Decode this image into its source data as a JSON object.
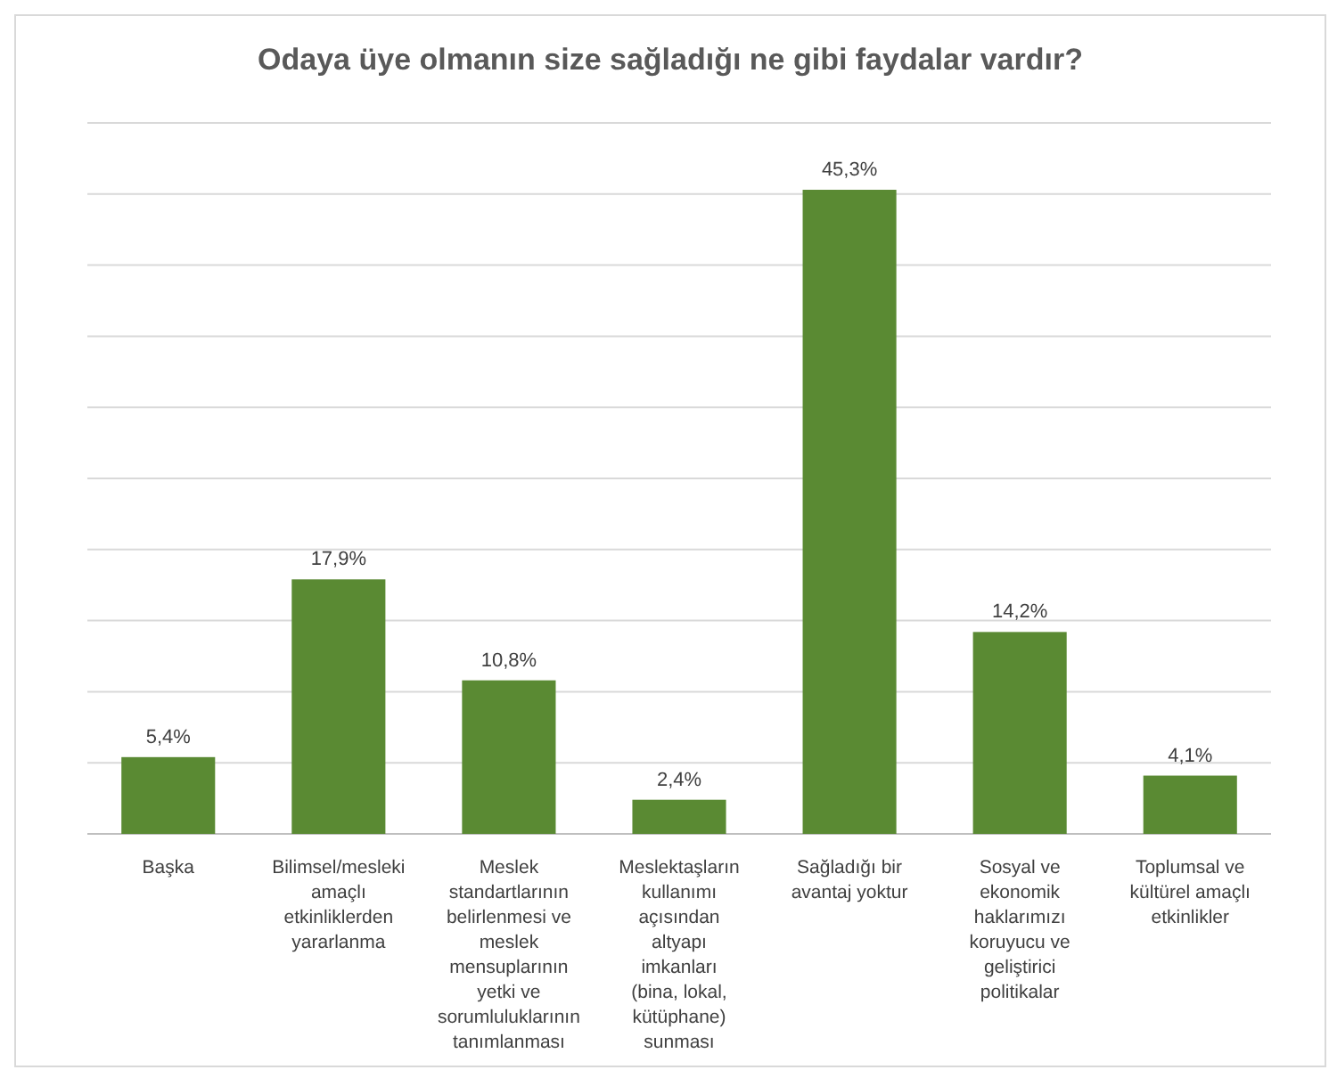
{
  "chart_data": {
    "type": "bar",
    "title": "Odaya üye olmanın size sağladığı ne gibi faydalar vardır?",
    "categories": [
      "Başka",
      "Bilimsel/mesleki amaçlı etkinliklerden yararlanma",
      "Meslek standartlarının belirlenmesi ve meslek mensuplarının yetki ve sorumluluklarının tanımlanması",
      "Meslektaşların kullanımı açısından altyapı imkanları (bina, lokal, kütüphane) sunması",
      "Sağladığı bir avantaj yoktur",
      "Sosyal ve ekonomik haklarımızı koruyucu ve geliştirici politikalar",
      "Toplumsal ve kültürel amaçlı etkinlikler"
    ],
    "values": [
      5.4,
      17.9,
      10.8,
      2.4,
      45.3,
      14.2,
      4.1
    ],
    "value_labels": [
      "5,4%",
      "17,9%",
      "10,8%",
      "2,4%",
      "45,3%",
      "14,2%",
      "4,1%"
    ],
    "color": "#5a8a33",
    "ylim": [
      0,
      50
    ],
    "yticks": [
      {
        "value": 0,
        "label": null
      },
      {
        "value": 5,
        "label": null
      },
      {
        "value": 10,
        "label": null
      },
      {
        "value": 15,
        "label": null
      },
      {
        "value": 20,
        "label": null
      },
      {
        "value": 25,
        "label": null
      },
      {
        "value": 30,
        "label": null
      },
      {
        "value": 35,
        "label": null
      },
      {
        "value": 40,
        "label": null
      },
      {
        "value": 45,
        "label": null
      },
      {
        "value": 50,
        "label": null
      }
    ],
    "tick_labels": "x",
    "grid": true
  }
}
